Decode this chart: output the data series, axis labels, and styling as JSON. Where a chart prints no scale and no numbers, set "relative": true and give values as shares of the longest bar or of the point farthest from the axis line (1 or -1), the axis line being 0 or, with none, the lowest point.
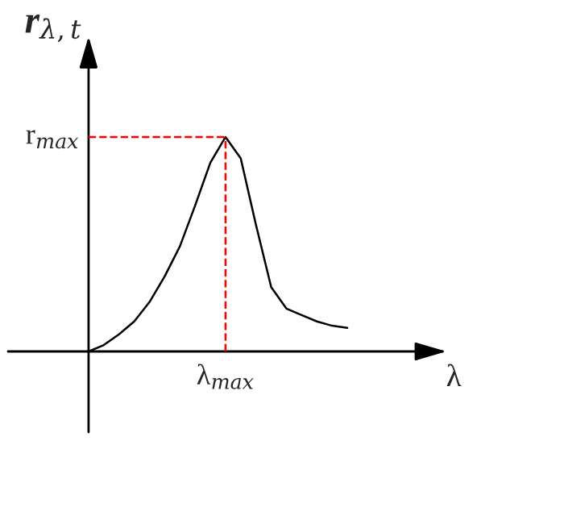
{
  "chart_data": {
    "type": "line",
    "relative": true,
    "xlabel": "λ",
    "ylabel": "r$_{λ,t}$",
    "categories": [
      null,
      null,
      null,
      null,
      null,
      null,
      null,
      null,
      null,
      null,
      null,
      null,
      null,
      null,
      null,
      null,
      null,
      null
    ],
    "series": [
      {
        "color": "#000000",
        "values": [
          0,
          0.03,
          0.08,
          0.14,
          0.23,
          0.35,
          0.49,
          0.68,
          0.88,
          1,
          0.9,
          0.59,
          0.3,
          0.2,
          0.17,
          0.14,
          0.12,
          0.11
        ]
      }
    ],
    "ref_lines": [
      {
        "axis": "y",
        "value": 1,
        "label": "r$_{max}$",
        "color": "#ff0000",
        "line_style": "dashed"
      }
    ],
    "annotations": [
      {
        "text": "λ$_{max}$",
        "y": 1
      }
    ],
    "grid": false,
    "legend": false,
    "marker": "none",
    "line_style": "solid"
  }
}
